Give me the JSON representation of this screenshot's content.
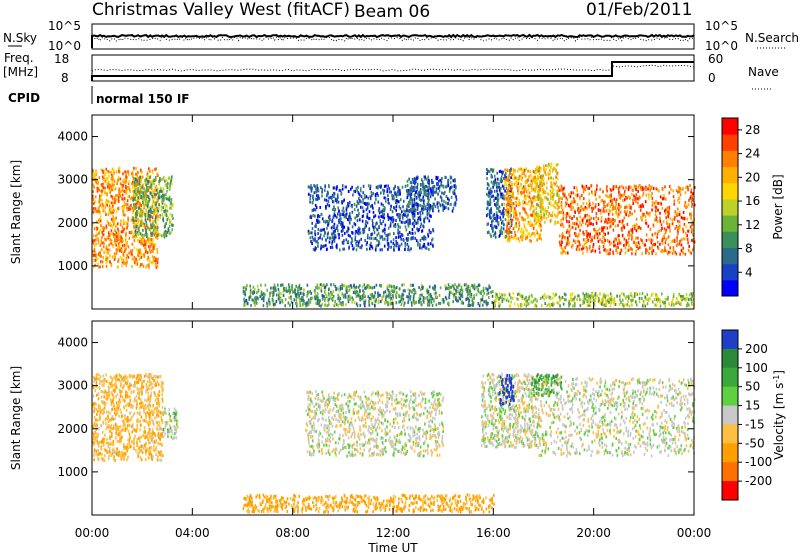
{
  "header": {
    "station": "Christmas Valley West (fitACF)",
    "beam": "Beam 06",
    "date": "01/Feb/2011"
  },
  "top_panels": {
    "nsky_label": "N.Sky",
    "nsearch_label": "N.Search",
    "freq_label": "Freq.",
    "freq_unit": "[MHz]",
    "nave_label": "Nave",
    "cpid_label": "CPID",
    "cpid_text": "normal 150 IF",
    "nsky_ticks": [
      "10^5",
      "10^0"
    ],
    "nsearch_ticks": [
      "10^5",
      "10^0"
    ],
    "freq_ticks": [
      "18",
      "8"
    ],
    "nave_ticks": [
      "60",
      "0"
    ]
  },
  "chart_data": [
    {
      "type": "heatmap",
      "name": "power",
      "ylabel": "Slant Range [km]",
      "xlabel": "",
      "ylim": [
        0,
        4500
      ],
      "xlim_hours": [
        0,
        24
      ],
      "yticks": [
        1000,
        2000,
        3000,
        4000
      ],
      "colorbar": {
        "label": "Power [dB]",
        "range": [
          0,
          30
        ],
        "ticks": [
          "4",
          "8",
          "12",
          "16",
          "20",
          "24",
          "28"
        ],
        "colors": [
          "#0000ff",
          "#1a40c8",
          "#2a6a8a",
          "#3a8f5a",
          "#6ab43a",
          "#bcd22a",
          "#ffd700",
          "#ffb000",
          "#ff8000",
          "#ff4000",
          "#ff0000"
        ]
      },
      "regions": [
        {
          "t": [
            0.0,
            2.6
          ],
          "r": [
            1000,
            3300
          ],
          "value": 22
        },
        {
          "t": [
            1.6,
            3.2
          ],
          "r": [
            1700,
            3100
          ],
          "value": 12
        },
        {
          "t": [
            8.6,
            13.6
          ],
          "r": [
            1400,
            2900
          ],
          "value": 5
        },
        {
          "t": [
            12.5,
            14.5
          ],
          "r": [
            2300,
            3100
          ],
          "value": 6
        },
        {
          "t": [
            15.7,
            16.7
          ],
          "r": [
            1700,
            3300
          ],
          "value": 6
        },
        {
          "t": [
            16.4,
            17.9
          ],
          "r": [
            1600,
            3300
          ],
          "value": 21
        },
        {
          "t": [
            17.6,
            18.6
          ],
          "r": [
            2000,
            3400
          ],
          "value": 18
        },
        {
          "t": [
            18.6,
            24.0
          ],
          "r": [
            1300,
            2900
          ],
          "value": 24
        },
        {
          "t": [
            6.0,
            16.0
          ],
          "r": [
            100,
            600
          ],
          "value": 10
        },
        {
          "t": [
            16.0,
            24.0
          ],
          "r": [
            100,
            400
          ],
          "value": 14
        }
      ]
    },
    {
      "type": "heatmap",
      "name": "velocity",
      "ylabel": "Slant Range [km]",
      "xlabel": "Time UT",
      "ylim": [
        0,
        4500
      ],
      "xlim_hours": [
        0,
        24
      ],
      "yticks": [
        1000,
        2000,
        3000,
        4000
      ],
      "xticks": [
        "00:00",
        "04:00",
        "08:00",
        "12:00",
        "16:00",
        "20:00",
        "00:00"
      ],
      "colorbar": {
        "label": "Velocity [m s",
        "label_superscript": "-1",
        "label_end": "]",
        "ticks": [
          "200",
          "100",
          "50",
          "15",
          "-15",
          "-50",
          "-100",
          "-200"
        ],
        "colors": [
          "#1f3fc8",
          "#2a8a3a",
          "#3aa83a",
          "#5fd040",
          "#c8c8c8",
          "#ffbf40",
          "#ffa000",
          "#ff7000",
          "#ff0000"
        ]
      },
      "regions": [
        {
          "t": [
            0.0,
            2.8
          ],
          "r": [
            1300,
            3300
          ],
          "value": -40
        },
        {
          "t": [
            2.8,
            3.4
          ],
          "r": [
            1800,
            2500
          ],
          "value": 5
        },
        {
          "t": [
            8.5,
            14.0
          ],
          "r": [
            1400,
            2900
          ],
          "value": 0
        },
        {
          "t": [
            15.5,
            17.8
          ],
          "r": [
            1600,
            3300
          ],
          "value": 0
        },
        {
          "t": [
            16.2,
            16.8
          ],
          "r": [
            2600,
            3300
          ],
          "value": 180
        },
        {
          "t": [
            17.5,
            18.7
          ],
          "r": [
            2800,
            3300
          ],
          "value": 60
        },
        {
          "t": [
            17.8,
            24.0
          ],
          "r": [
            1400,
            3200
          ],
          "value": 0
        },
        {
          "t": [
            6.0,
            16.0
          ],
          "r": [
            100,
            500
          ],
          "value": -60
        }
      ]
    }
  ]
}
